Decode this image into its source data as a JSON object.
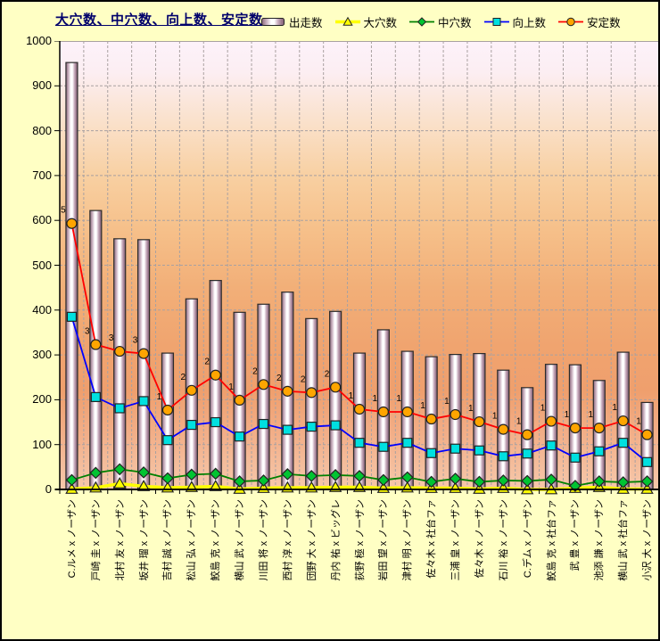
{
  "title": "大穴数、中穴数、向上数、安定数",
  "watermark": "©Caniの競馬データ研究室",
  "colors": {
    "background": "#FFFFC4",
    "title": "#00006B",
    "watermark": "#8383F2",
    "grid": "#A9A1A1",
    "axis": "#000000",
    "bar_edge": "#8A687C",
    "bar_center": "#FFFFFF",
    "plot_gradient_top": "#FDF2FA",
    "plot_gradient_mid": "#EF9F6D",
    "plot_gradient_bottom": "#F6C8AB"
  },
  "chart_data": {
    "type": "bar",
    "subtype": "bar+line combo",
    "title": "大穴数、中穴数、向上数、安定数",
    "xlabel": "",
    "ylabel": "",
    "ylim": [
      0,
      1000
    ],
    "ytick_step": 100,
    "grid": true,
    "legend_position": "top",
    "categories": [
      "C.ルメ x ノーザン",
      "戸崎 圭 x ノーザン",
      "北村 友 x ノーザン",
      "坂井 瑠 x ノーザン",
      "吉村 誠 x ノーザン",
      "松山 弘 x ノーザン",
      "鮫島 克 x ノーザン",
      "横山 武 x ノーザン",
      "川田 将 x ノーザン",
      "西村 淳 x ノーザン",
      "団野 大 x ノーザン",
      "丹内 祐 x ビッグレ",
      "荻野 極 x ノーザン",
      "岩田 望 x ノーザン",
      "津村 明 x ノーザン",
      "佐々木 x 社台ファ",
      "三浦 皇 x ノーザン",
      "佐々木 x ノーザン",
      "石川 裕 x ノーザン",
      "C.デム x ノーザン",
      "鮫島 克 x 社台ファ",
      "武 豊 x ノーザン",
      "池添 謙 x ノーザン",
      "横山 武 x 社台ファ",
      "小沢 大 x ノーザン"
    ],
    "series": [
      {
        "name": "出走数",
        "kind": "bar",
        "values": [
          952,
          622,
          559,
          557,
          304,
          425,
          466,
          395,
          413,
          440,
          381,
          397,
          304,
          356,
          308,
          296,
          301,
          303,
          266,
          227,
          279,
          278,
          243,
          306,
          194
        ]
      },
      {
        "name": "大穴数",
        "kind": "line",
        "marker": "triangle",
        "line_color": "#FFFF00",
        "marker_fill": "#FFFF00",
        "line_width": 3.5,
        "values": [
          1,
          4,
          13,
          7,
          4,
          5,
          7,
          1,
          3,
          4,
          4,
          5,
          5,
          3,
          4,
          3,
          3,
          1,
          3,
          0,
          0,
          3,
          5,
          1,
          1
        ]
      },
      {
        "name": "中穴数",
        "kind": "line",
        "marker": "diamond",
        "line_color": "#008000",
        "marker_fill": "#00C432",
        "line_width": 1.8,
        "values": [
          21,
          37,
          45,
          38,
          25,
          33,
          35,
          18,
          20,
          34,
          30,
          32,
          30,
          21,
          27,
          17,
          24,
          17,
          20,
          19,
          22,
          8,
          18,
          16,
          18
        ]
      },
      {
        "name": "向上数",
        "kind": "line",
        "marker": "square",
        "line_color": "#0000FF",
        "marker_fill": "#00E0E0",
        "line_width": 1.8,
        "values": [
          385,
          206,
          181,
          197,
          110,
          144,
          150,
          118,
          146,
          133,
          140,
          143,
          104,
          95,
          104,
          81,
          91,
          87,
          74,
          80,
          98,
          71,
          85,
          104,
          61
        ]
      },
      {
        "name": "安定数",
        "kind": "line",
        "marker": "circle",
        "line_color": "#FF0000",
        "marker_fill": "#FFA500",
        "line_width": 1.8,
        "data_labels": true,
        "values": [
          593,
          323,
          308,
          303,
          177,
          221,
          255,
          199,
          234,
          219,
          216,
          228,
          179,
          173,
          173,
          157,
          167,
          151,
          134,
          122,
          152,
          137,
          137,
          153,
          122
        ]
      }
    ]
  }
}
